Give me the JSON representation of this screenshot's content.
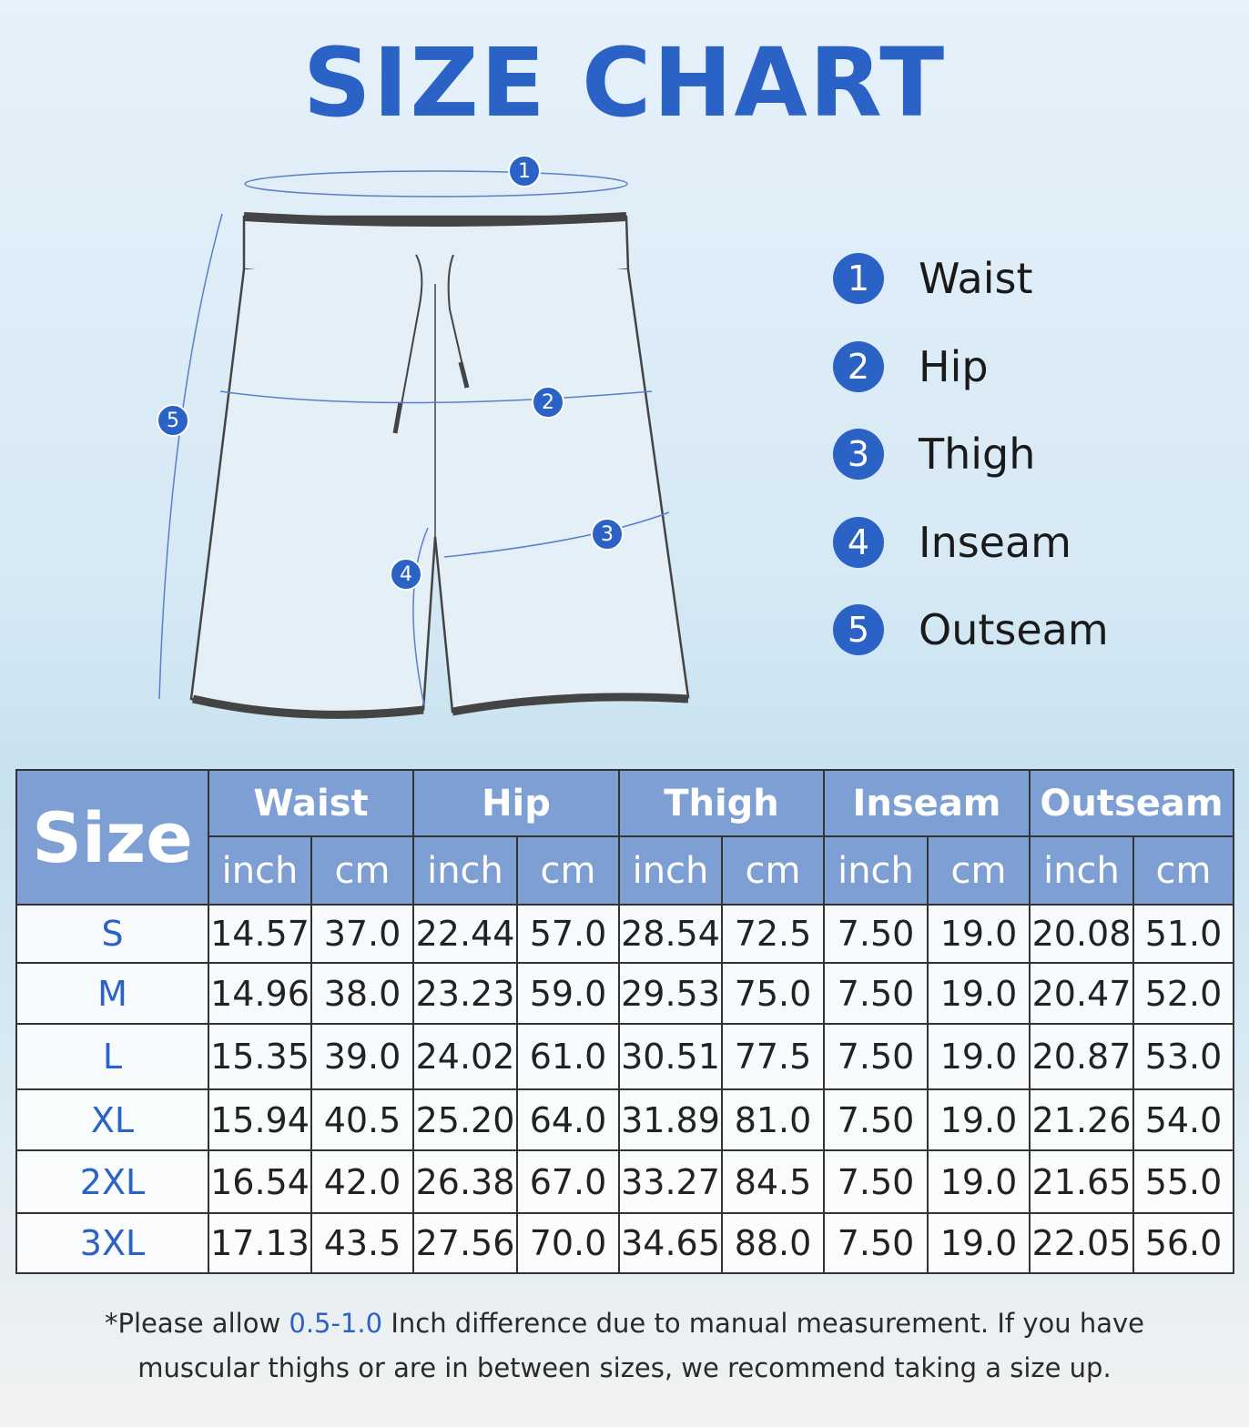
{
  "title": "SIZE CHART",
  "diagram_markers": [
    "1",
    "2",
    "3",
    "4",
    "5"
  ],
  "legend": [
    {
      "number": "1",
      "label": "Waist"
    },
    {
      "number": "2",
      "label": "Hip"
    },
    {
      "number": "3",
      "label": "Thigh"
    },
    {
      "number": "4",
      "label": "Inseam"
    },
    {
      "number": "5",
      "label": "Outseam"
    }
  ],
  "table": {
    "size_header": "Size",
    "groups": [
      "Waist",
      "Hip",
      "Thigh",
      "Inseam",
      "Outseam"
    ],
    "units": [
      "inch",
      "cm",
      "inch",
      "cm",
      "inch",
      "cm",
      "inch",
      "cm",
      "inch",
      "cm"
    ],
    "rows": [
      [
        "S",
        "14.57",
        "37.0",
        "22.44",
        "57.0",
        "28.54",
        "72.5",
        "7.50",
        "19.0",
        "20.08",
        "51.0"
      ],
      [
        "M",
        "14.96",
        "38.0",
        "23.23",
        "59.0",
        "29.53",
        "75.0",
        "7.50",
        "19.0",
        "20.47",
        "52.0"
      ],
      [
        "L",
        "15.35",
        "39.0",
        "24.02",
        "61.0",
        "30.51",
        "77.5",
        "7.50",
        "19.0",
        "20.87",
        "53.0"
      ],
      [
        "XL",
        "15.94",
        "40.5",
        "25.20",
        "64.0",
        "31.89",
        "81.0",
        "7.50",
        "19.0",
        "21.26",
        "54.0"
      ],
      [
        "2XL",
        "16.54",
        "42.0",
        "26.38",
        "67.0",
        "33.27",
        "84.5",
        "7.50",
        "19.0",
        "21.65",
        "55.0"
      ],
      [
        "3XL",
        "17.13",
        "43.5",
        "27.56",
        "70.0",
        "34.65",
        "88.0",
        "7.50",
        "19.0",
        "22.05",
        "56.0"
      ]
    ]
  },
  "note": {
    "prefix": "*Please allow ",
    "highlight": "0.5-1.0",
    "line1_rest": " Inch difference due to manual measurement. If you have",
    "line2": "muscular thighs or are in between sizes, we recommend taking a size up."
  }
}
